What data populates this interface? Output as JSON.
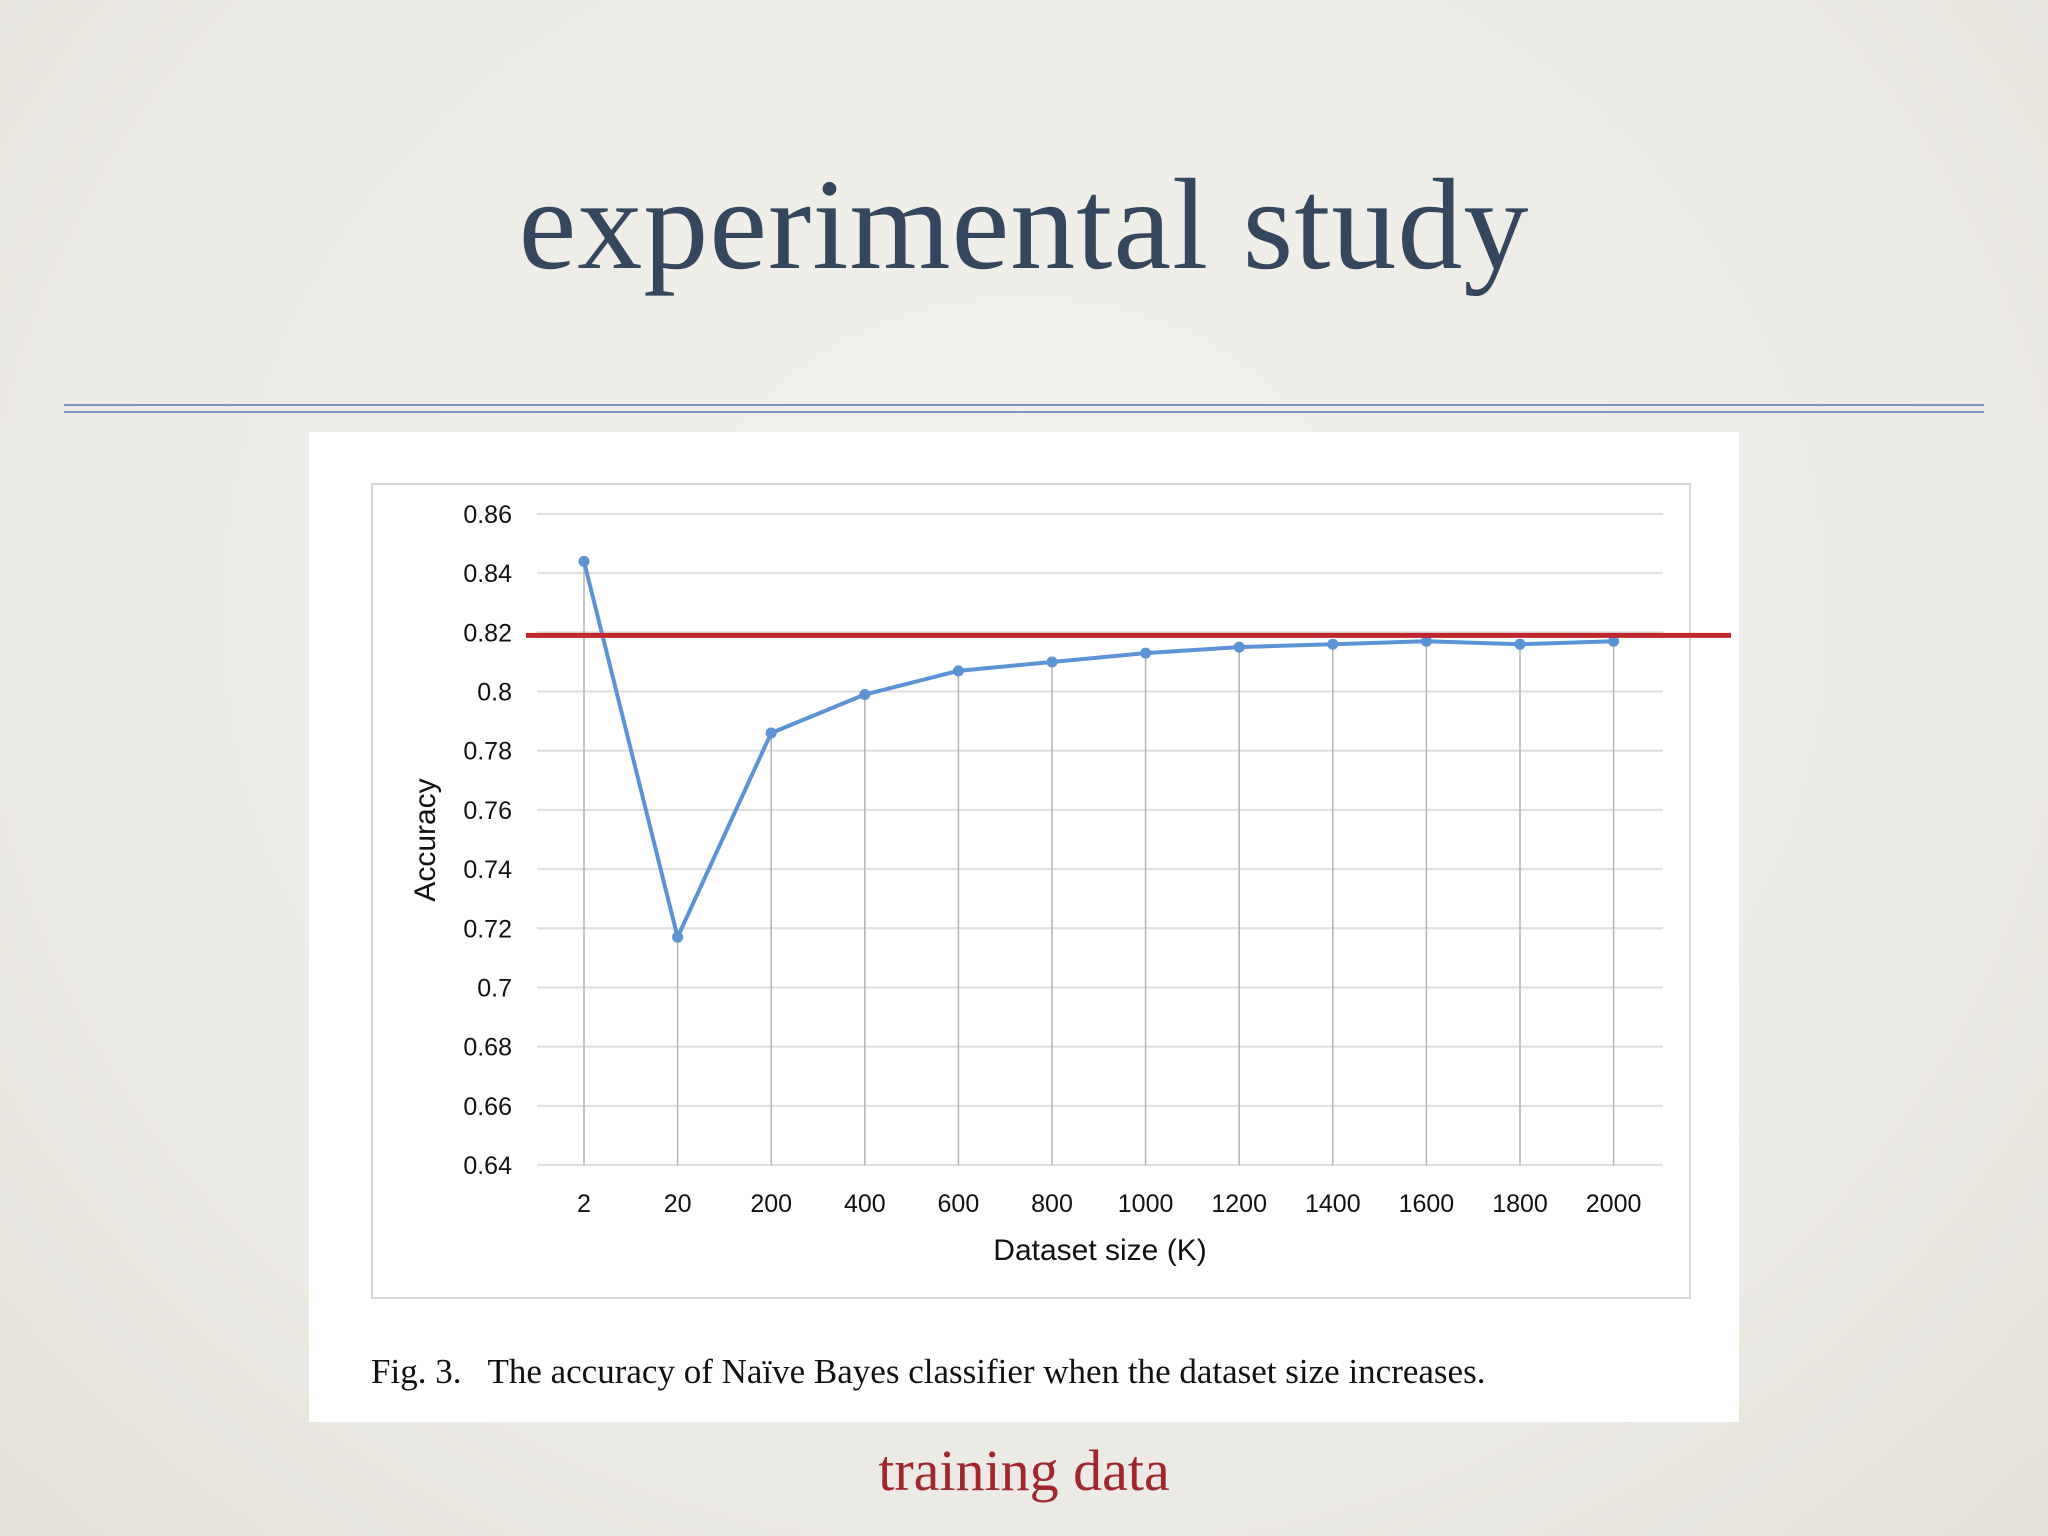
{
  "slide": {
    "title": "experimental study",
    "footer_label": "training data"
  },
  "figure": {
    "caption_label": "Fig. 3.",
    "caption_text": "The accuracy of Naïve Bayes classifier when the dataset size increases."
  },
  "chart_data": {
    "type": "line",
    "categories": [
      "2",
      "20",
      "200",
      "400",
      "600",
      "800",
      "1000",
      "1200",
      "1400",
      "1600",
      "1800",
      "2000"
    ],
    "series": [
      {
        "values": [
          0.844,
          0.717,
          0.786,
          0.799,
          0.807,
          0.81,
          0.813,
          0.815,
          0.816,
          0.817,
          0.816,
          0.817
        ],
        "color": "#5b93d4"
      }
    ],
    "reference_line": {
      "value": 0.819,
      "color": "#c0282d"
    },
    "xlabel": "Dataset size (K)",
    "ylabel": "Accuracy",
    "ylim": [
      0.64,
      0.86
    ],
    "yticks": [
      "0.86",
      "0.84",
      "0.82",
      "0.8",
      "0.78",
      "0.76",
      "0.74",
      "0.72",
      "0.7",
      "0.68",
      "0.66",
      "0.64"
    ],
    "grid": true
  }
}
